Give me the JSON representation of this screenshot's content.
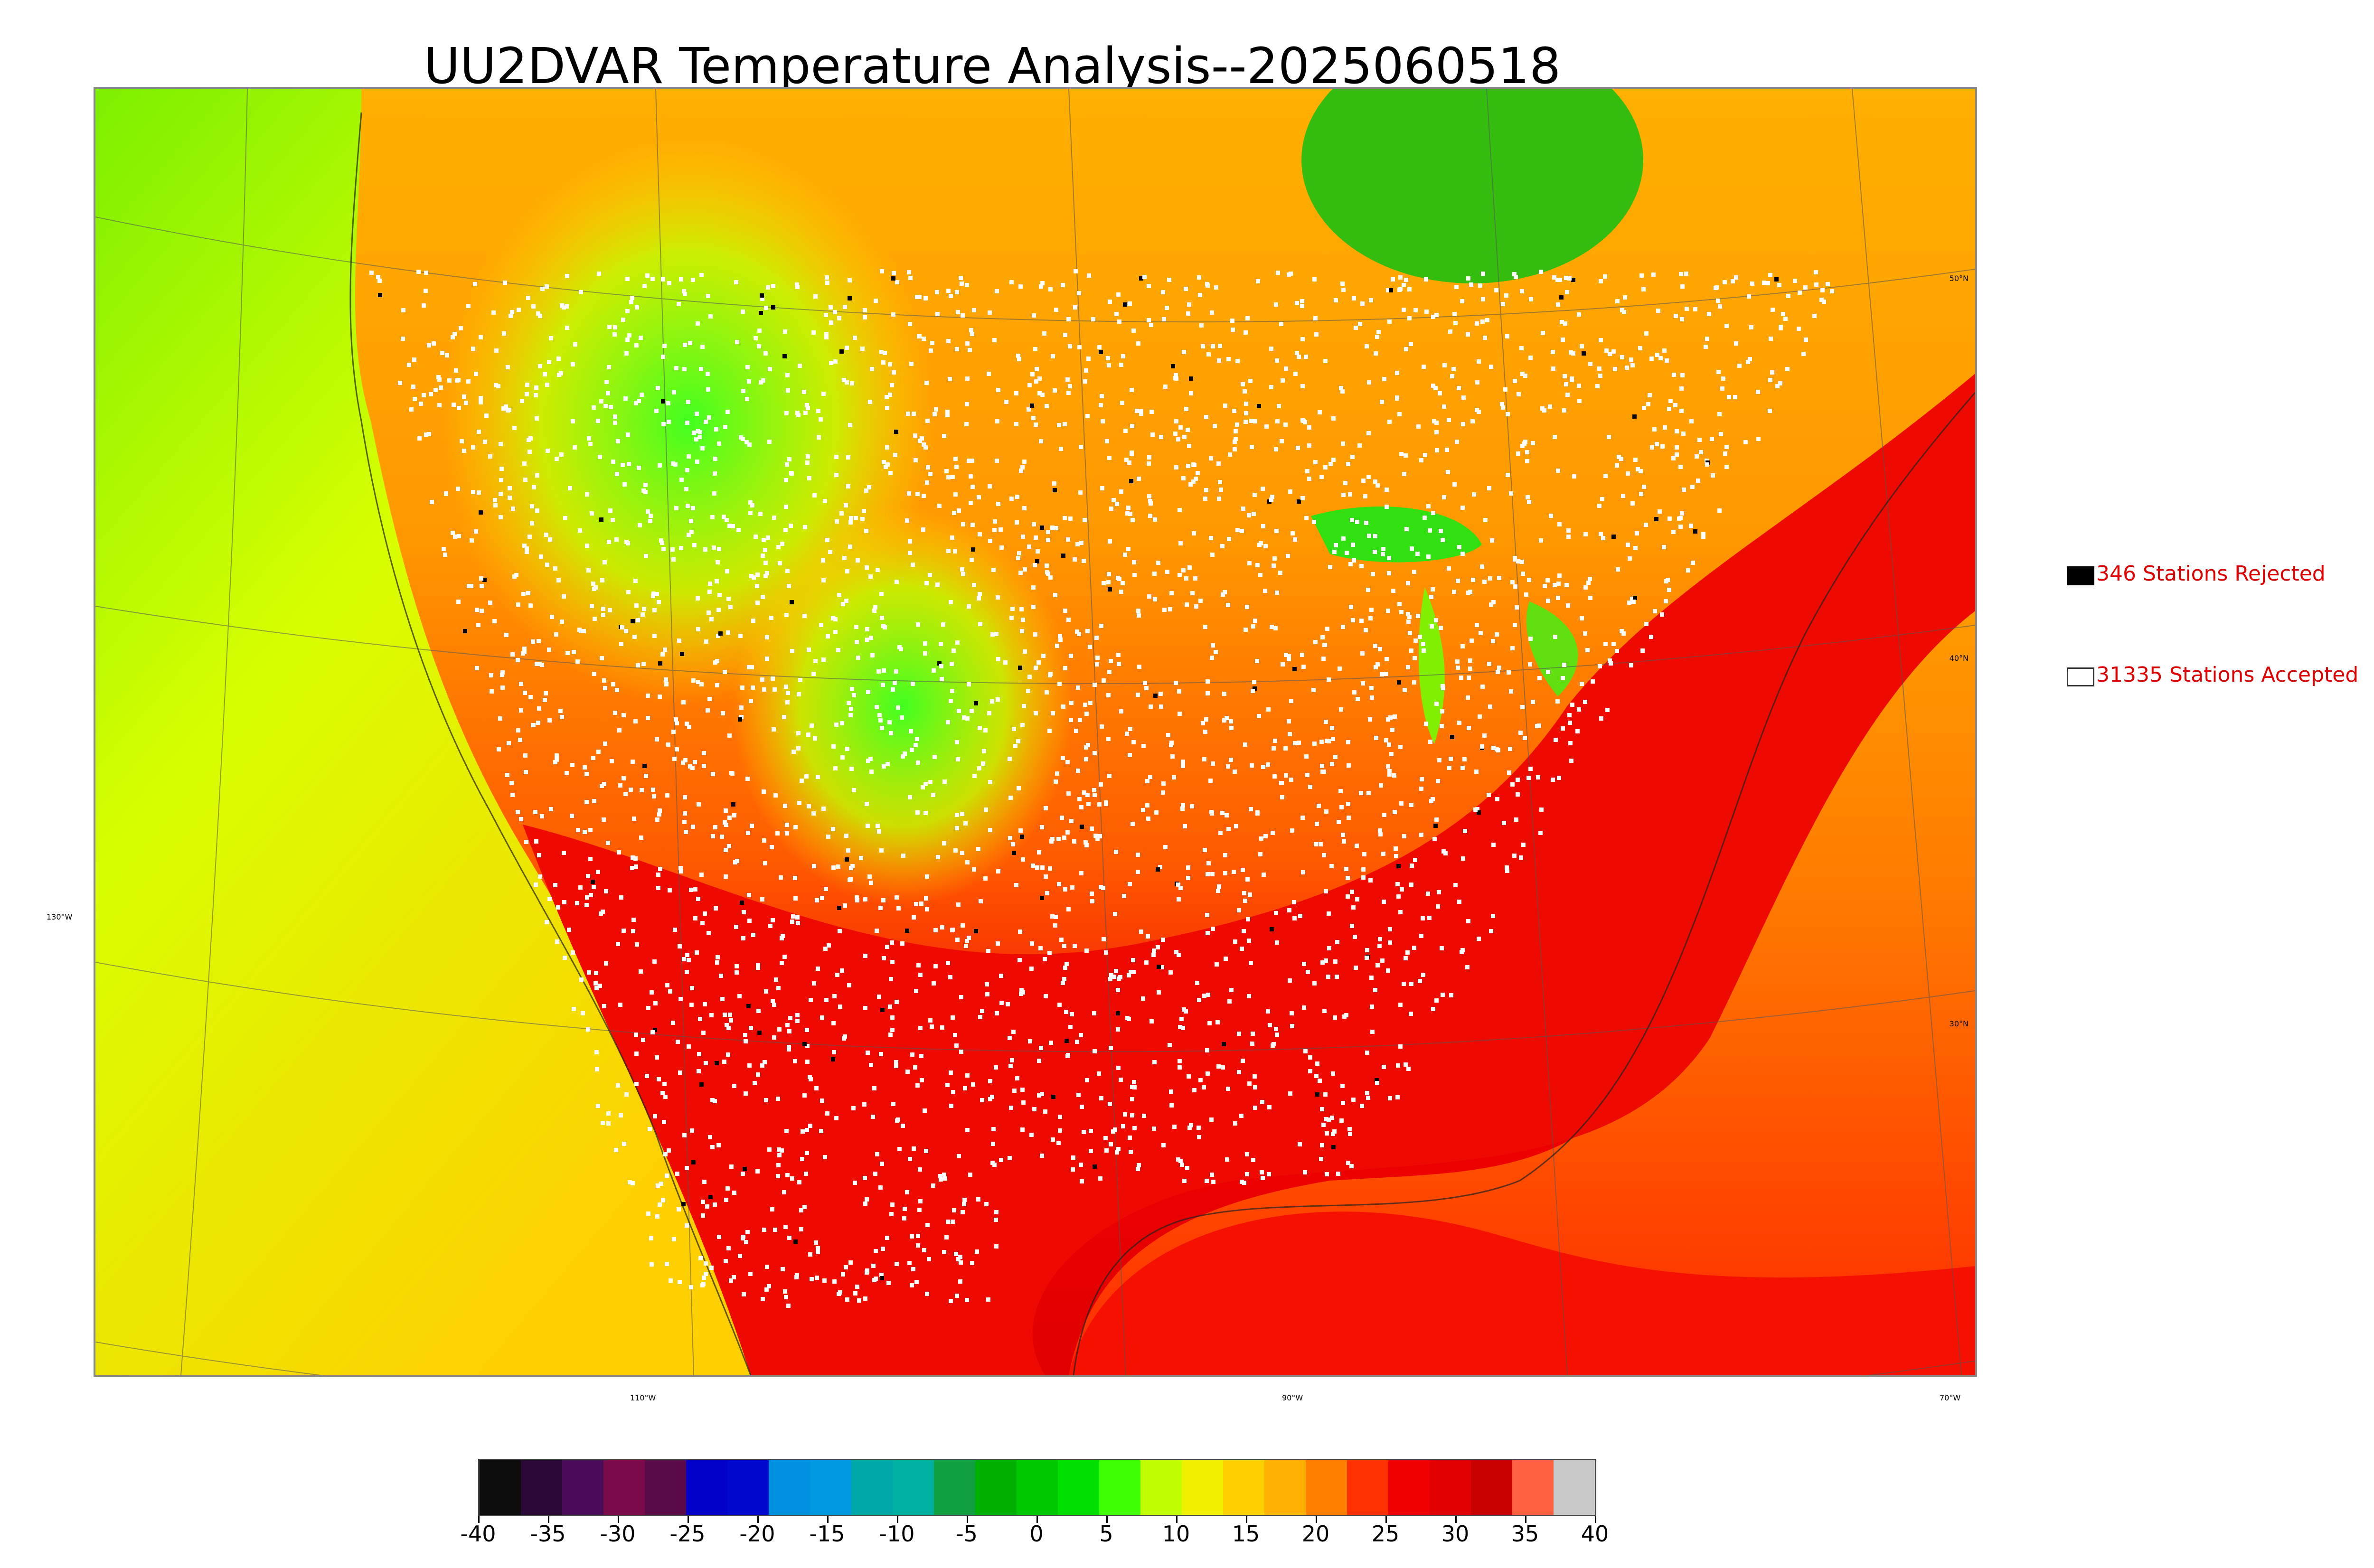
{
  "title": "UU2DVAR Temperature Analysis--2025060518",
  "map": {
    "description_icon": "temperature-map",
    "lon_labels": [
      "110°W",
      "90°W",
      "70°W"
    ],
    "lat_labels": [
      "50°N",
      "40°N",
      "30°N",
      "130°W"
    ]
  },
  "legend": {
    "rejected": {
      "label": "346 Stations Rejected",
      "color": "#000000"
    },
    "accepted": {
      "label": "31335 Stations Accepted",
      "color": "#ffffff"
    }
  },
  "colorbar": {
    "min": -40,
    "max": 40,
    "tick_labels": [
      "-40",
      "-35",
      "-30",
      "-25",
      "-20",
      "-15",
      "-10",
      "-5",
      "0",
      "5",
      "10",
      "15",
      "20",
      "25",
      "30",
      "35",
      "40"
    ],
    "colors": [
      "#0d0d0d",
      "#2a0838",
      "#4a0a5a",
      "#7a0a4a",
      "#5a0a48",
      "#0000c8",
      "#0008d0",
      "#0090e0",
      "#0098e0",
      "#00a8a8",
      "#00b0a0",
      "#10a040",
      "#00b000",
      "#00c800",
      "#00e000",
      "#40ff00",
      "#c0ff00",
      "#f0f000",
      "#ffd000",
      "#ffb000",
      "#ff8000",
      "#ff3000",
      "#f00000",
      "#e00000",
      "#c80000",
      "#ff6040",
      "#c8c8c8"
    ]
  }
}
